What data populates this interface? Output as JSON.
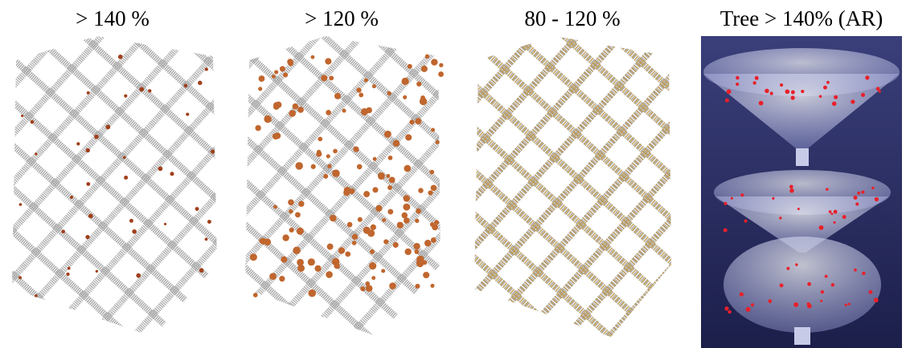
{
  "panels": [
    {
      "caption": "> 140 %"
    },
    {
      "caption": "> 120 %"
    },
    {
      "caption": "80 - 120 %"
    },
    {
      "caption": "Tree > 140% (AR)"
    }
  ]
}
